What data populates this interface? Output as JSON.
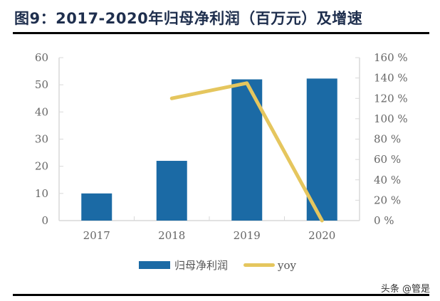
{
  "header": {
    "title": "图9：2017-2020年归母净利润（百万元）及增速"
  },
  "watermark": "头条 @管是",
  "colors": {
    "bar": "#1b6aa5",
    "line": "#e5c65e",
    "axis": "#d9d9d9",
    "tick_text": "#666666",
    "title": "#1e2e4d"
  },
  "chart_data": {
    "type": "bar+line",
    "title": "2017-2020年归母净利润（百万元）及增速",
    "categories": [
      "2017",
      "2018",
      "2019",
      "2020"
    ],
    "series": [
      {
        "name": "归母净利润",
        "type": "bar",
        "axis": "left",
        "values": [
          10,
          22,
          52,
          52.3
        ]
      },
      {
        "name": "yoy",
        "type": "line",
        "axis": "right",
        "values": [
          null,
          120,
          135,
          0
        ],
        "unit": "%"
      }
    ],
    "y_left": {
      "range": [
        0,
        60
      ],
      "ticks": [
        "0",
        "10",
        "20",
        "30",
        "40",
        "50",
        "60"
      ]
    },
    "y_right": {
      "range": [
        0,
        160
      ],
      "ticks": [
        "0 %",
        "20 %",
        "40 %",
        "60 %",
        "80 %",
        "100 %",
        "120 %",
        "140 %",
        "160 %"
      ]
    },
    "xlabel": "",
    "ylabel": "",
    "grid": false,
    "legend_position": "bottom"
  },
  "legend": {
    "items": [
      {
        "label": "归母净利润",
        "kind": "bar"
      },
      {
        "label": "yoy",
        "kind": "line"
      }
    ]
  }
}
